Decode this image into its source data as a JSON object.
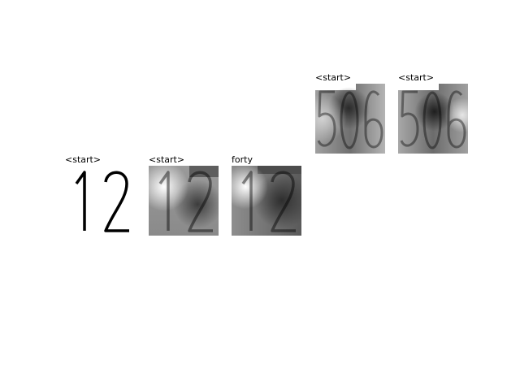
{
  "panels": [
    {
      "label": "<start>",
      "digits": "12",
      "style": "plain"
    },
    {
      "label": "<start>",
      "digits": "12",
      "style": "attention"
    },
    {
      "label": "forty",
      "digits": "12",
      "style": "attention"
    },
    {
      "label": "<start>",
      "digits": "506",
      "style": "attention"
    },
    {
      "label": "<start>",
      "digits": "506",
      "style": "attention"
    }
  ],
  "colors": {
    "background": "#ffffff",
    "text": "#000000",
    "glyph": "#000000"
  }
}
